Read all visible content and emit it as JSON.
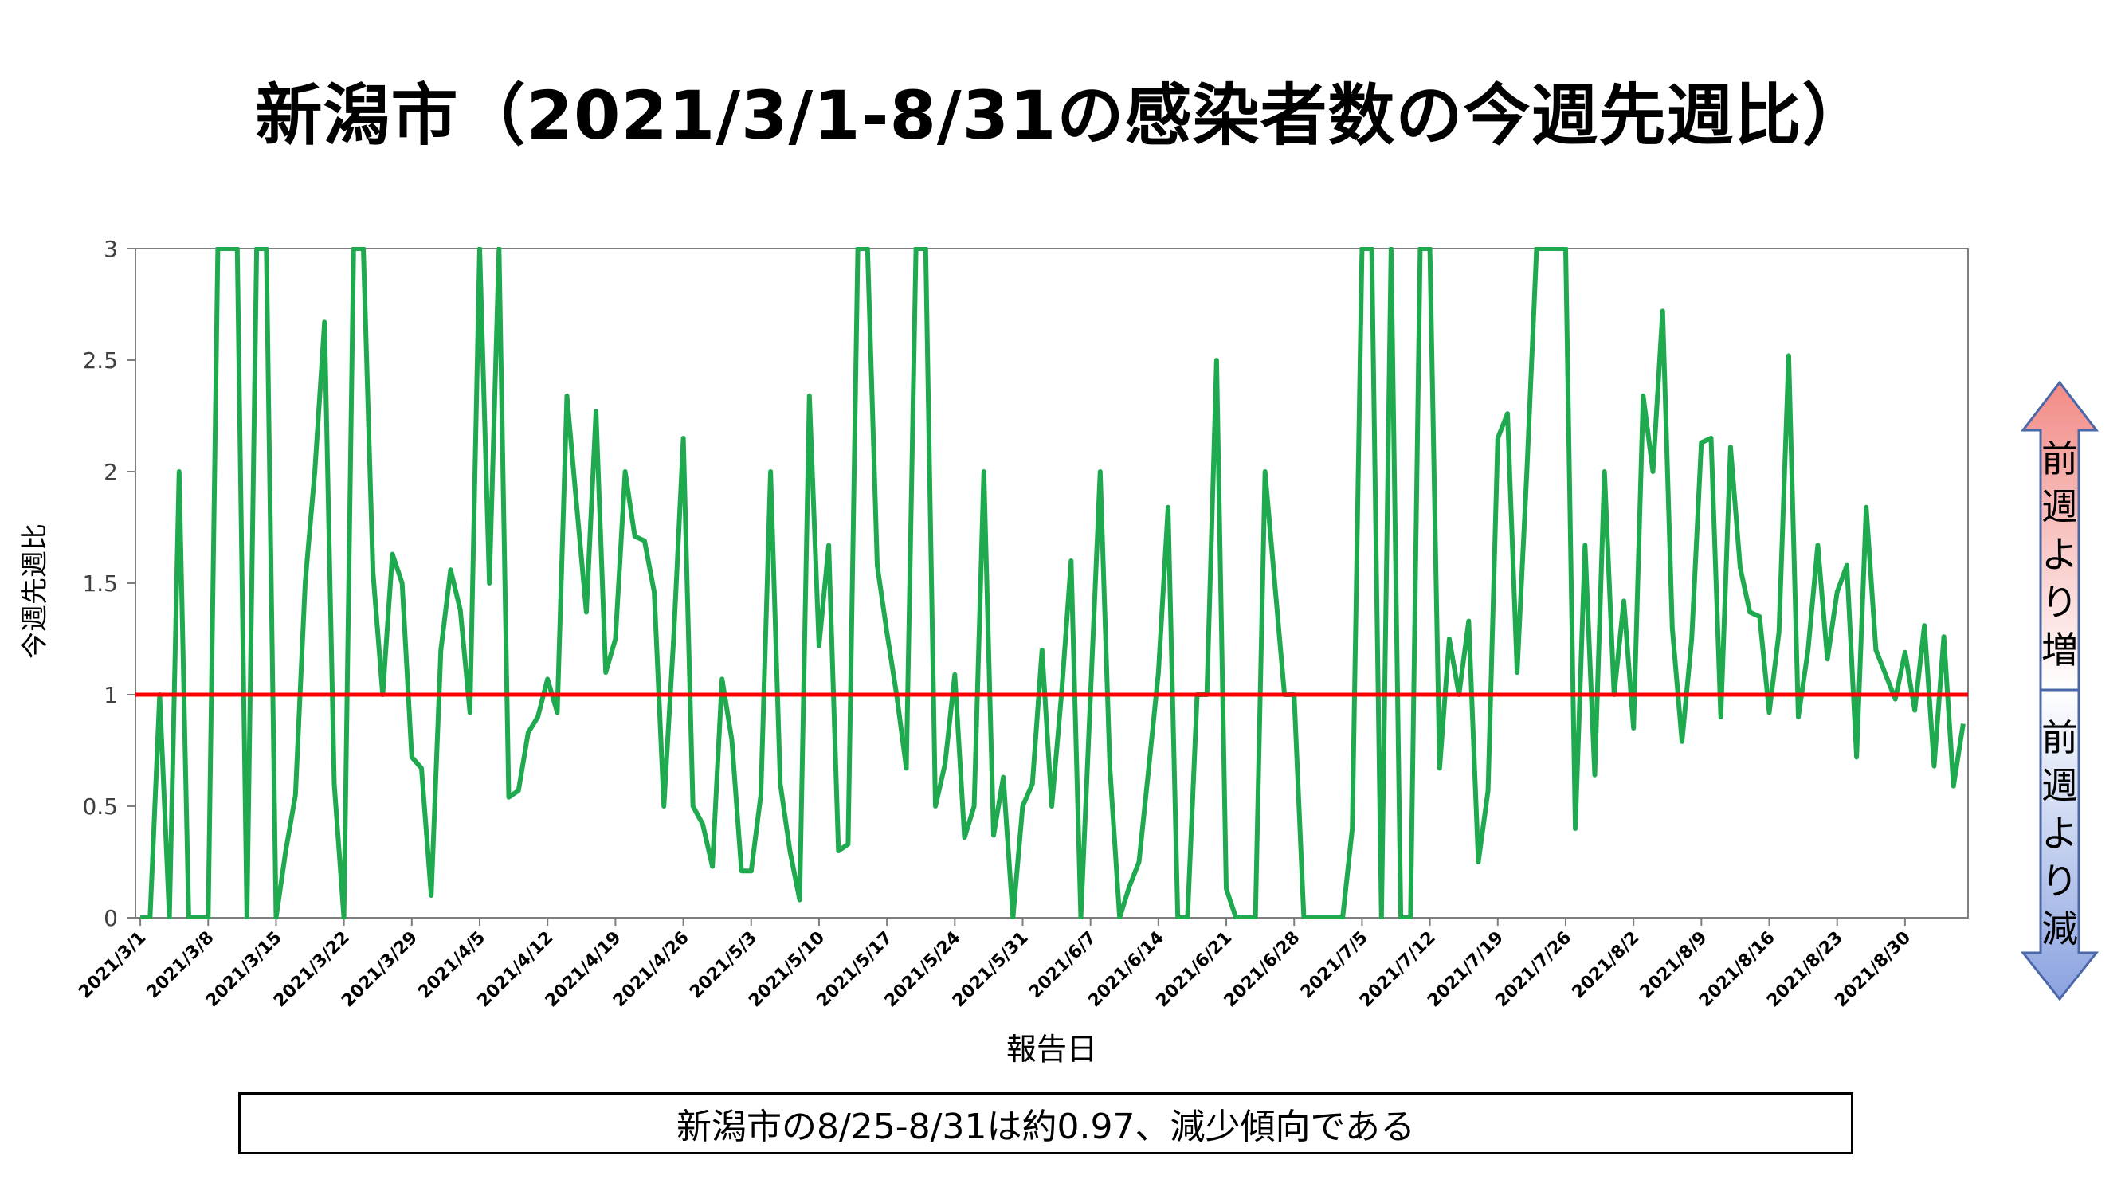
{
  "title": "新潟市（2021/3/1-8/31の感染者数の今週先週比）",
  "summary": "新潟市の8/25-8/31は約0.97、減少傾向である",
  "indicator": {
    "increase_label": "前週より増",
    "decrease_label": "前週より減"
  },
  "colors": {
    "line": "#1faa50",
    "reference": "#ff0000",
    "increase": "#f28b86",
    "decrease": "#8aa2e0"
  },
  "chart_data": {
    "type": "line",
    "title": "新潟市（2021/3/1-8/31の感染者数の今週先週比）",
    "xlabel": "報告日",
    "ylabel": "今週先週比",
    "ylim": [
      0,
      3
    ],
    "yticks": [
      "0",
      "0.5",
      "1",
      "1.5",
      "2",
      "2.5",
      "3"
    ],
    "xticks": [
      "2021/3/1",
      "2021/3/8",
      "2021/3/15",
      "2021/3/22",
      "2021/3/29",
      "2021/4/5",
      "2021/4/12",
      "2021/4/19",
      "2021/4/26",
      "2021/5/3",
      "2021/5/10",
      "2021/5/17",
      "2021/5/24",
      "2021/5/31",
      "2021/6/7",
      "2021/6/14",
      "2021/6/21",
      "2021/6/28",
      "2021/7/5",
      "2021/7/12",
      "2021/7/19",
      "2021/7/26",
      "2021/8/2",
      "2021/8/9",
      "2021/8/16",
      "2021/8/23",
      "2021/8/30"
    ],
    "x_start": "2021/3/1",
    "x_end": "2021/8/31",
    "reference_line": 1,
    "grid": false,
    "series": [
      {
        "values": [
          0,
          0,
          1,
          0,
          2,
          0,
          0,
          0,
          3,
          3,
          3,
          0,
          3,
          3,
          0,
          0.3,
          0.55,
          1.5,
          2,
          2.67,
          0.6,
          0,
          3,
          3,
          1.55,
          1,
          1.63,
          1.5,
          0.72,
          0.67,
          0.1,
          1.2,
          1.56,
          1.38,
          0.92,
          3,
          1.5,
          3,
          0.54,
          0.57,
          0.83,
          0.9,
          1.07,
          0.92,
          2.34,
          1.85,
          1.37,
          2.27,
          1.1,
          1.25,
          2,
          1.71,
          1.69,
          1.46,
          0.5,
          1.25,
          2.15,
          0.5,
          0.42,
          0.23,
          1.07,
          0.8,
          0.21,
          0.21,
          0.55,
          2,
          0.6,
          0.3,
          0.08,
          2.34,
          1.22,
          1.67,
          0.3,
          0.33,
          3,
          3,
          1.58,
          1.28,
          1,
          0.67,
          3,
          3,
          0.5,
          0.69,
          1.09,
          0.36,
          0.5,
          2,
          0.37,
          0.63,
          0,
          0.5,
          0.6,
          1.2,
          0.5,
          1,
          1.6,
          0,
          1,
          2,
          0.67,
          0,
          0.14,
          0.25,
          0.67,
          1.1,
          1.84,
          0,
          0,
          1,
          1,
          2.5,
          0.13,
          0,
          0,
          0,
          2,
          1.5,
          1,
          1,
          0,
          0,
          0,
          0,
          0,
          0.4,
          3,
          3,
          0,
          3,
          0,
          0,
          3,
          3,
          0.67,
          1.25,
          1,
          1.33,
          0.25,
          0.57,
          2.15,
          2.26,
          1.1,
          2,
          3,
          3,
          3,
          3,
          0.4,
          1.67,
          0.64,
          2,
          1,
          1.42,
          0.85,
          2.34,
          2,
          2.72,
          1.3,
          0.79,
          1.25,
          2.13,
          2.15,
          0.9,
          2.11,
          1.57,
          1.37,
          1.35,
          0.92,
          1.28,
          2.52,
          0.9,
          1.2,
          1.67,
          1.16,
          1.46,
          1.58,
          0.72,
          1.84,
          1.2,
          1.09,
          0.98,
          1.19,
          0.93,
          1.31,
          0.68,
          1.26,
          0.59,
          0.87
        ]
      }
    ]
  }
}
